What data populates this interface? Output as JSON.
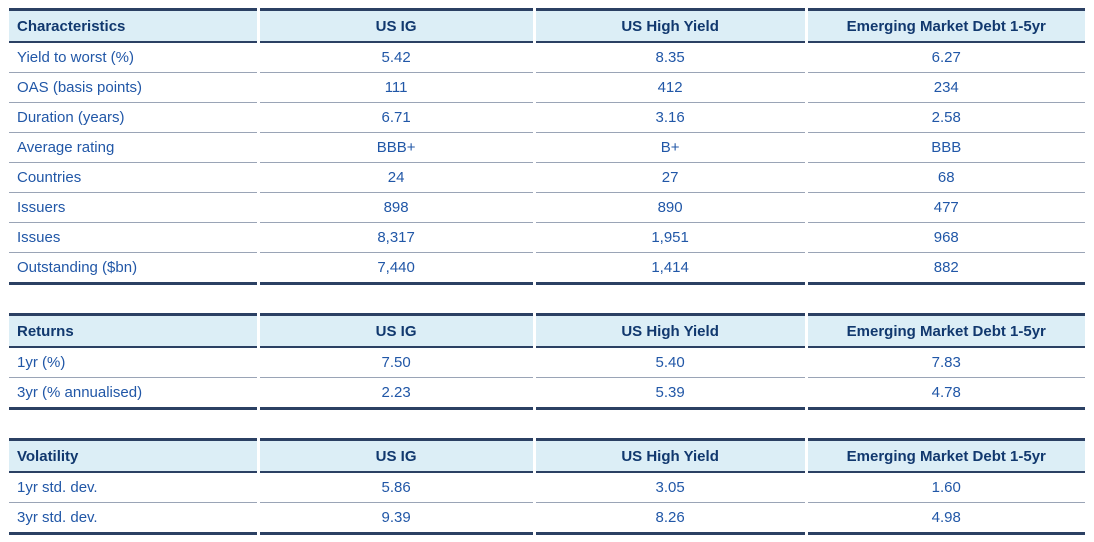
{
  "colors": {
    "header_background": "#dceef6",
    "dark_border": "#2b4063",
    "row_separator": "#9aa4b6",
    "header_text": "#11386e",
    "body_text": "#2157a7",
    "page_background": "#ffffff"
  },
  "tables": [
    {
      "title": "Characteristics",
      "columns": [
        "US IG",
        "US High Yield",
        "Emerging Market Debt 1-5yr"
      ],
      "rows": [
        {
          "label": "Yield to worst (%)",
          "values": [
            "5.42",
            "8.35",
            "6.27"
          ]
        },
        {
          "label": "OAS (basis points)",
          "values": [
            "111",
            "412",
            "234"
          ]
        },
        {
          "label": "Duration (years)",
          "values": [
            "6.71",
            "3.16",
            "2.58"
          ]
        },
        {
          "label": "Average rating",
          "values": [
            "BBB+",
            "B+",
            "BBB"
          ]
        },
        {
          "label": "Countries",
          "values": [
            "24",
            "27",
            "68"
          ]
        },
        {
          "label": "Issuers",
          "values": [
            "898",
            "890",
            "477"
          ]
        },
        {
          "label": "Issues",
          "values": [
            "8,317",
            "1,951",
            "968"
          ]
        },
        {
          "label": "Outstanding ($bn)",
          "values": [
            "7,440",
            "1,414",
            "882"
          ]
        }
      ]
    },
    {
      "title": "Returns",
      "columns": [
        "US IG",
        "US High Yield",
        "Emerging Market Debt 1-5yr"
      ],
      "rows": [
        {
          "label": "1yr (%)",
          "values": [
            "7.50",
            "5.40",
            "7.83"
          ]
        },
        {
          "label": "3yr (% annualised)",
          "values": [
            "2.23",
            "5.39",
            "4.78"
          ]
        }
      ]
    },
    {
      "title": "Volatility",
      "columns": [
        "US IG",
        "US High Yield",
        "Emerging Market Debt 1-5yr"
      ],
      "rows": [
        {
          "label": "1yr std. dev.",
          "values": [
            "5.86",
            "3.05",
            "1.60"
          ]
        },
        {
          "label": "3yr std. dev.",
          "values": [
            "9.39",
            "8.26",
            "4.98"
          ]
        }
      ]
    }
  ]
}
